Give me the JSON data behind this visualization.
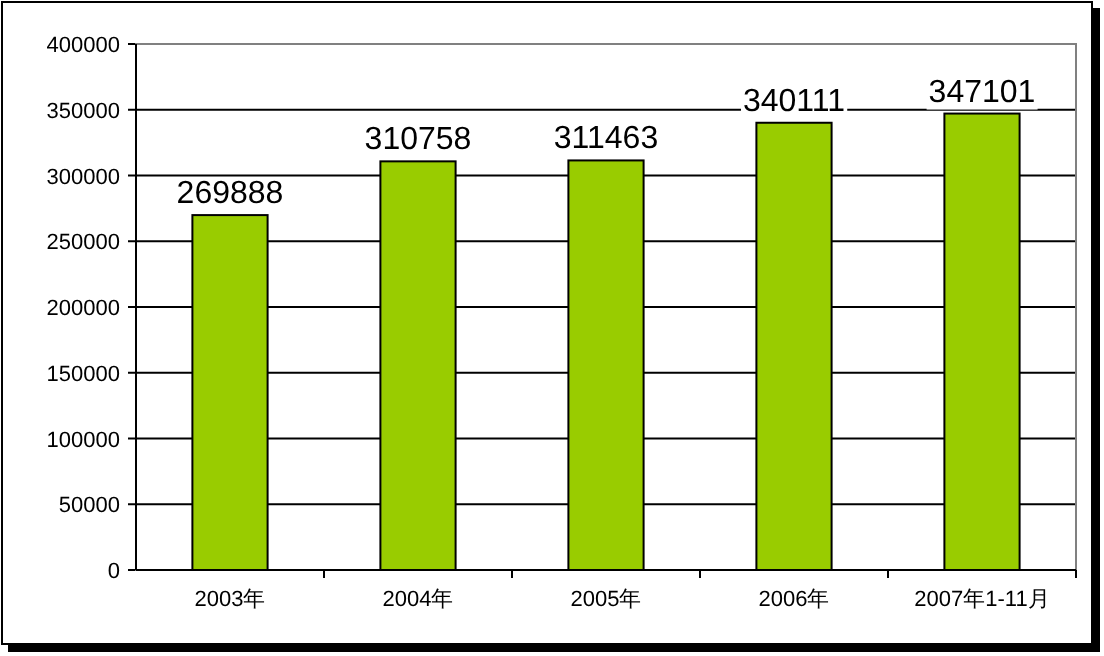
{
  "chart_data": {
    "type": "bar",
    "categories": [
      "2003年",
      "2004年",
      "2005年",
      "2006年",
      "2007年1-11月"
    ],
    "values": [
      269888,
      310758,
      311463,
      340111,
      347101
    ],
    "color": "#99cc00",
    "ylim": [
      0,
      400000
    ],
    "yticks": [
      0,
      50000,
      100000,
      150000,
      200000,
      250000,
      300000,
      350000,
      400000
    ],
    "grid": "y",
    "data_labels": true
  }
}
